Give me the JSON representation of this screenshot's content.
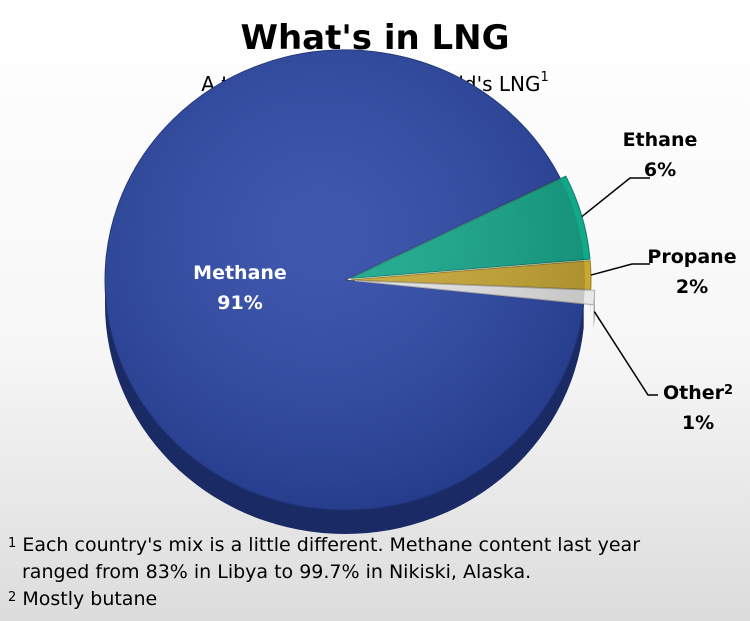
{
  "chart_data": {
    "type": "pie",
    "title": "What's in LNG",
    "subtitle": "A typical blend of the world's LNG",
    "subtitle_sup": "1",
    "slices": [
      {
        "name": "Methane",
        "value": 91,
        "label": "91%",
        "color": "#2a46a6"
      },
      {
        "name": "Ethane",
        "value": 6,
        "label": "6%",
        "color": "#12a88a"
      },
      {
        "name": "Propane",
        "value": 2,
        "label": "2%",
        "color": "#c9a832"
      },
      {
        "name": "Other",
        "value": 1,
        "label": "1%",
        "color": "#e8e8e8",
        "sup": "2"
      }
    ]
  },
  "footnotes": [
    {
      "mark": "1",
      "line1": "Each country's mix is a little different. Methane content last year",
      "line2": "ranged from 83% in Libya to 99.7% in Nikiski, Alaska."
    },
    {
      "mark": "2",
      "line1": "Mostly butane"
    }
  ]
}
